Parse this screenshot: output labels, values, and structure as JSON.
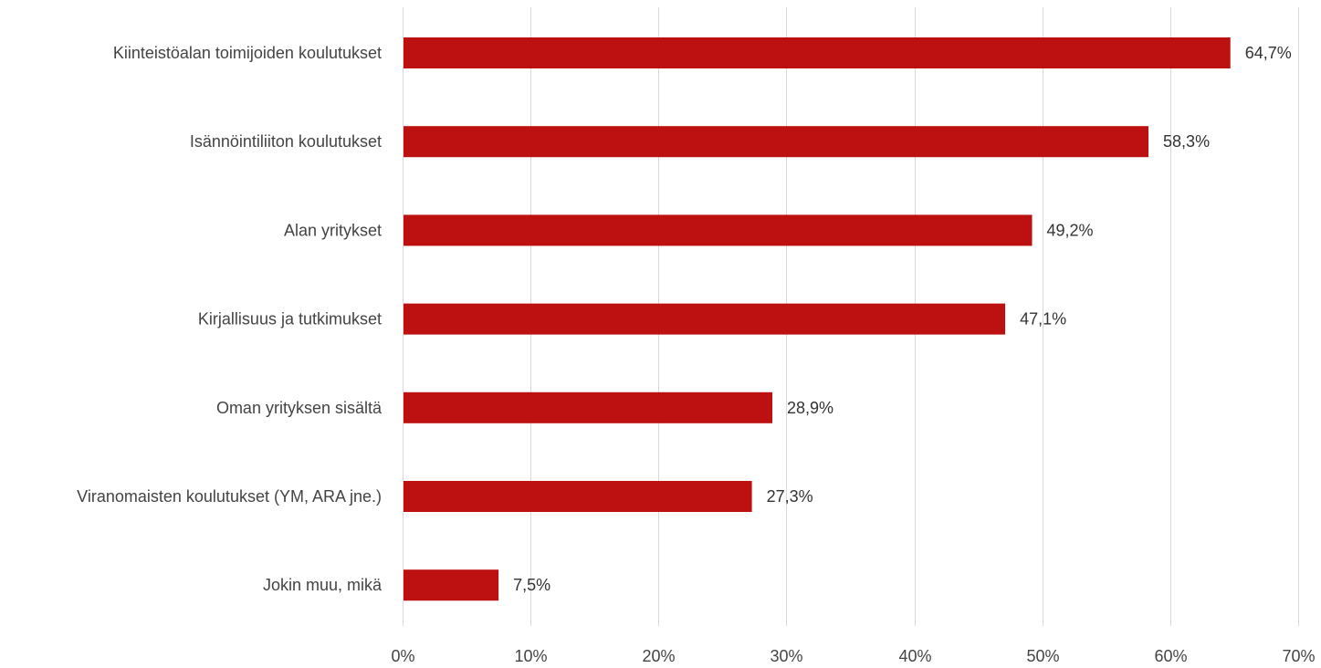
{
  "chart_data": {
    "type": "bar",
    "orientation": "horizontal",
    "categories": [
      "Kiinteistöalan toimijoiden koulutukset",
      "Isännöintiliiton koulutukset",
      "Alan yritykset",
      "Kirjallisuus ja tutkimukset",
      "Oman yrityksen sisältä",
      "Viranomaisten koulutukset (YM, ARA jne.)",
      "Jokin muu, mikä"
    ],
    "values": [
      64.7,
      58.3,
      49.2,
      47.1,
      28.9,
      27.3,
      7.5
    ],
    "value_labels": [
      "64,7%",
      "58,3%",
      "49,2%",
      "47,1%",
      "28,9%",
      "27,3%",
      "7,5%"
    ],
    "xlim": [
      0,
      70
    ],
    "x_ticks": [
      0,
      10,
      20,
      30,
      40,
      50,
      60,
      70
    ],
    "x_tick_labels": [
      "0%",
      "10%",
      "20%",
      "30%",
      "40%",
      "50%",
      "60%",
      "70%"
    ],
    "grid": "vertical",
    "legend": "none",
    "bar_color": "#bd1111",
    "title": "",
    "xlabel": "",
    "ylabel": ""
  }
}
